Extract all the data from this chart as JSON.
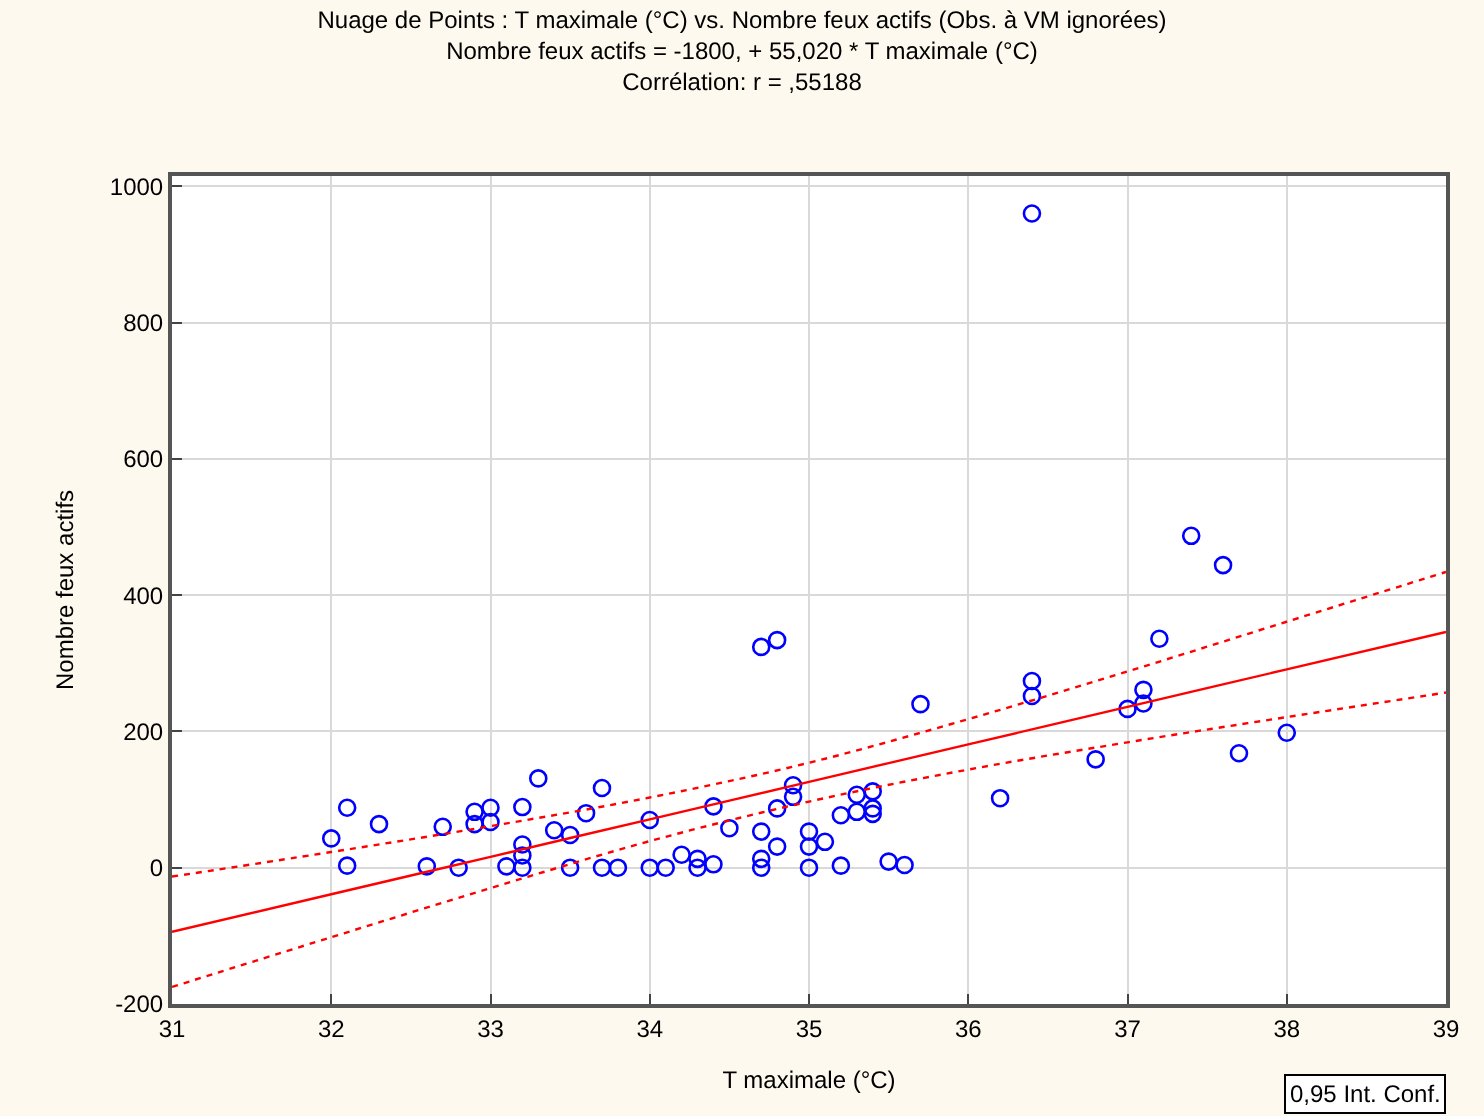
{
  "chart_data": {
    "type": "scatter",
    "title": "Nuage de Points : T maximale (°C) vs. Nombre feux actifs (Obs. à VM ignorées)",
    "subtitle": "Nombre feux actifs = -1800, + 55,020 * T maximale (°C)\nCorrélation: r = ,55188",
    "xlabel": "T maximale (°C)",
    "ylabel": "Nombre feux actifs",
    "xlim": [
      31,
      39
    ],
    "xticks": [
      31,
      32,
      33,
      34,
      35,
      36,
      37,
      38,
      39
    ],
    "ylim": [
      -200,
      1015
    ],
    "yticks": [
      -200,
      0,
      200,
      400,
      600,
      800,
      1000
    ],
    "grid": true,
    "annotations": [
      "0,95 Int. Conf."
    ],
    "series": [
      {
        "marker": "circle",
        "color": "#0000ff",
        "x": [
          32.0,
          32.1,
          32.1,
          32.3,
          32.6,
          32.7,
          32.8,
          32.9,
          32.9,
          33.0,
          33.0,
          33.1,
          33.2,
          33.2,
          33.2,
          33.2,
          33.3,
          33.4,
          33.5,
          33.5,
          33.6,
          33.7,
          33.7,
          33.8,
          34.0,
          34.0,
          34.1,
          34.2,
          34.3,
          34.3,
          34.4,
          34.4,
          34.5,
          34.7,
          34.8,
          34.7,
          34.7,
          34.7,
          34.8,
          34.8,
          34.9,
          34.9,
          35.0,
          35.0,
          35.0,
          35.1,
          35.2,
          35.2,
          35.3,
          35.3,
          35.4,
          35.4,
          35.4,
          35.5,
          35.6,
          35.7,
          36.4,
          36.2,
          36.4,
          36.4,
          36.8,
          37.0,
          37.1,
          37.1,
          37.2,
          37.4,
          37.6,
          37.7,
          38.0
        ],
        "values": [
          43,
          88,
          3,
          64,
          2,
          60,
          0,
          82,
          64,
          88,
          67,
          2,
          89,
          34,
          18,
          0,
          131,
          55,
          48,
          0,
          80,
          117,
          0,
          0,
          70,
          0,
          0,
          19,
          13,
          0,
          90,
          5,
          58,
          324,
          334,
          53,
          13,
          0,
          87,
          31,
          121,
          104,
          53,
          31,
          0,
          38,
          77,
          3,
          107,
          82,
          112,
          87,
          79,
          9,
          4,
          240,
          960,
          102,
          274,
          252,
          159,
          233,
          261,
          241,
          336,
          487,
          444,
          168,
          198
        ]
      },
      {
        "type": "line",
        "marker": "none",
        "color": "#ff0000",
        "line_style": "solid",
        "x": [
          31,
          32,
          33,
          34,
          35,
          36,
          37,
          38,
          39
        ],
        "values": [
          -94,
          -39,
          16,
          71,
          126,
          181,
          236,
          291,
          346
        ]
      },
      {
        "type": "line",
        "marker": "none",
        "color": "#ff0000",
        "line_style": "dotted",
        "x": [
          31,
          32,
          33,
          34,
          35,
          36,
          37,
          38,
          39
        ],
        "values": [
          -175,
          -102,
          -30,
          39,
          97,
          144,
          184,
          221,
          257
        ]
      },
      {
        "type": "line",
        "marker": "none",
        "color": "#ff0000",
        "line_style": "dotted",
        "x": [
          31,
          32,
          33,
          34,
          35,
          36,
          37,
          38,
          39
        ],
        "values": [
          -13,
          23,
          61,
          103,
          154,
          218,
          288,
          361,
          434
        ]
      }
    ]
  }
}
